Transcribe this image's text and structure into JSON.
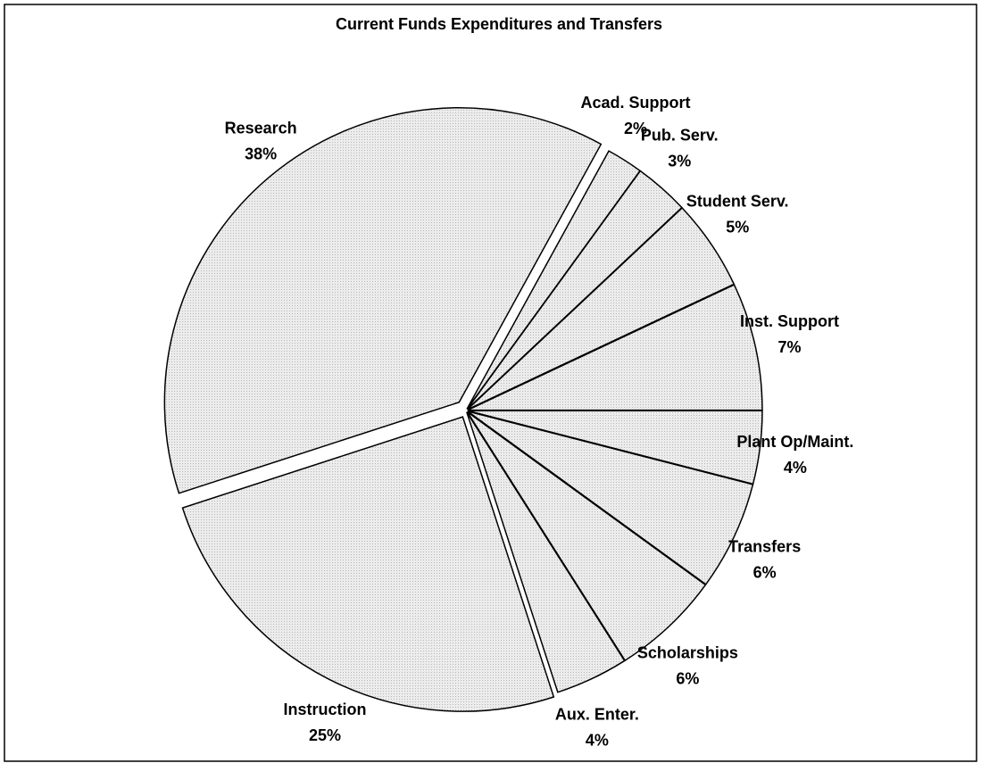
{
  "chart_data": {
    "type": "pie",
    "title": "Current Funds Expenditures and Transfers",
    "categories": [
      "Acad. Support",
      "Pub. Serv.",
      "Student Serv.",
      "Inst. Support",
      "Plant Op/Maint.",
      "Transfers",
      "Scholarships",
      "Aux. Enter.",
      "Instruction",
      "Research"
    ],
    "values": [
      2,
      3,
      5,
      7,
      4,
      6,
      6,
      4,
      25,
      38
    ],
    "value_labels": [
      "2%",
      "3%",
      "5%",
      "7%",
      "4%",
      "6%",
      "6%",
      "4%",
      "25%",
      "38%"
    ],
    "color": "#e4e4e4"
  }
}
